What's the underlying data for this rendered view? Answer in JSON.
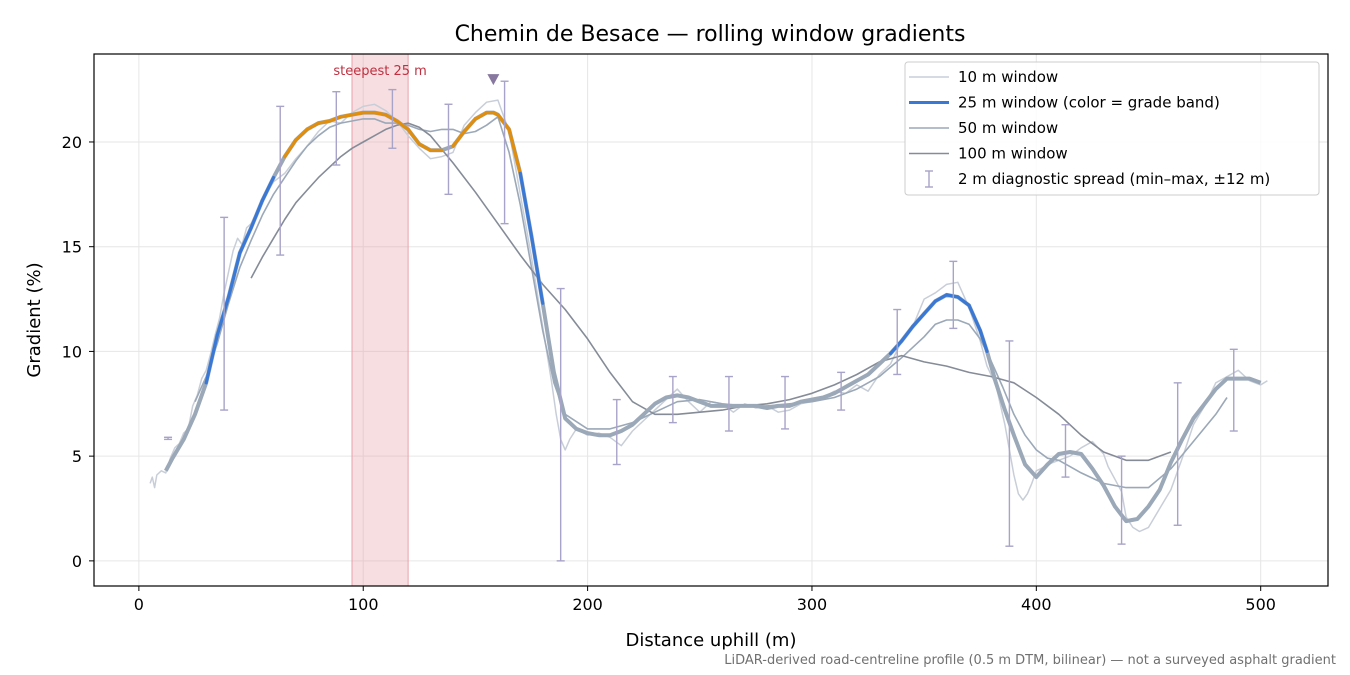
{
  "chart_data": {
    "type": "line",
    "title": "Chemin de Besace — rolling window gradients",
    "xlabel": "Distance uphill (m)",
    "ylabel": "Gradient (%)",
    "xlim": [
      -20,
      530
    ],
    "ylim": [
      -1.2,
      24.2
    ],
    "xticks": [
      0,
      100,
      200,
      300,
      400,
      500
    ],
    "yticks": [
      0,
      5,
      10,
      15,
      20
    ],
    "grid": true,
    "legend_position": "top-right",
    "note": "LiDAR-derived road-centreline profile (0.5 m DTM, bilinear) — not a surveyed asphalt gradient",
    "steepest_band": {
      "x_start": 95,
      "x_end": 120,
      "label": "steepest 25 m",
      "color": "#e8a0a8"
    },
    "peak_marker": {
      "x": 158,
      "y": 23,
      "color": "#8878a0"
    },
    "grade_band_colors": {
      "low": "#3a78d6",
      "high": "#e08e0b",
      "threshold": 19.5
    },
    "series": [
      {
        "name": "10 m window",
        "color": "#c8ced8",
        "width": 1.5,
        "x": [
          5,
          6,
          7,
          8,
          10,
          12,
          14,
          16,
          18,
          20,
          22,
          24,
          26,
          28,
          30,
          32,
          34,
          36,
          38,
          40,
          42,
          44,
          46,
          48,
          50,
          55,
          60,
          65,
          70,
          75,
          80,
          85,
          90,
          95,
          100,
          105,
          110,
          115,
          120,
          125,
          130,
          135,
          140,
          145,
          150,
          155,
          160,
          165,
          170,
          175,
          178,
          181,
          184,
          186,
          188,
          190,
          192,
          195,
          200,
          205,
          210,
          215,
          220,
          225,
          230,
          235,
          240,
          245,
          250,
          255,
          260,
          265,
          270,
          275,
          280,
          285,
          290,
          295,
          300,
          305,
          310,
          315,
          320,
          325,
          330,
          335,
          340,
          345,
          350,
          355,
          360,
          365,
          370,
          375,
          378,
          382,
          386,
          388,
          390,
          392,
          394,
          396,
          398,
          400,
          402,
          405,
          410,
          415,
          420,
          425,
          430,
          432,
          435,
          438,
          440,
          443,
          446,
          450,
          455,
          460,
          465,
          470,
          475,
          480,
          485,
          490,
          495,
          500,
          503
        ],
        "y": [
          3.7,
          4.0,
          3.5,
          4.1,
          4.3,
          4.2,
          4.9,
          5.4,
          5.6,
          6.1,
          6.3,
          7.4,
          7.9,
          8.7,
          9.1,
          9.9,
          10.8,
          11.6,
          12.8,
          13.8,
          14.8,
          15.4,
          15.1,
          15.9,
          16.1,
          17.2,
          18.1,
          18.5,
          19.2,
          19.8,
          20.5,
          21.0,
          20.9,
          21.4,
          21.7,
          21.8,
          21.5,
          21.0,
          20.3,
          19.7,
          19.2,
          19.3,
          19.5,
          20.8,
          21.4,
          21.9,
          22.0,
          20.5,
          17.5,
          14.5,
          12.5,
          10.5,
          8.5,
          7.0,
          5.8,
          5.3,
          5.8,
          6.3,
          6.0,
          6.1,
          5.9,
          5.5,
          6.2,
          6.7,
          7.2,
          7.7,
          8.2,
          7.6,
          7.1,
          7.6,
          7.5,
          7.1,
          7.5,
          7.3,
          7.4,
          7.1,
          7.2,
          7.5,
          7.6,
          7.8,
          8.1,
          8.0,
          8.4,
          8.1,
          8.9,
          9.4,
          10.5,
          11.2,
          12.5,
          12.8,
          13.2,
          13.3,
          12.1,
          10.5,
          9.3,
          8.4,
          6.5,
          5.3,
          4.1,
          3.2,
          2.9,
          3.2,
          3.7,
          4.3,
          4.4,
          4.6,
          4.8,
          5.0,
          5.4,
          5.7,
          5.1,
          4.5,
          3.9,
          3.3,
          2.1,
          1.6,
          1.4,
          1.6,
          2.5,
          3.4,
          4.9,
          6.5,
          7.4,
          8.5,
          8.8,
          9.1,
          8.6,
          8.4,
          8.6
        ]
      },
      {
        "name": "25 m window (color = grade band)",
        "color": "#3a78d6",
        "width": 3,
        "x": [
          12,
          15,
          20,
          25,
          30,
          35,
          40,
          45,
          50,
          55,
          60,
          65,
          70,
          75,
          80,
          85,
          90,
          95,
          100,
          105,
          110,
          115,
          120,
          125,
          130,
          135,
          140,
          145,
          150,
          155,
          158,
          160,
          165,
          170,
          175,
          180,
          185,
          190,
          195,
          200,
          205,
          210,
          215,
          220,
          225,
          230,
          235,
          240,
          245,
          250,
          255,
          260,
          265,
          270,
          275,
          280,
          285,
          290,
          295,
          300,
          305,
          310,
          315,
          320,
          325,
          330,
          335,
          340,
          345,
          350,
          355,
          360,
          365,
          370,
          375,
          378,
          382,
          386,
          390,
          395,
          400,
          405,
          410,
          415,
          420,
          425,
          430,
          435,
          440,
          445,
          450,
          455,
          460,
          465,
          470,
          475,
          480,
          485,
          490,
          495,
          500
        ],
        "y": [
          4.3,
          4.9,
          5.8,
          7.0,
          8.5,
          10.8,
          12.6,
          14.7,
          15.9,
          17.2,
          18.3,
          19.3,
          20.1,
          20.6,
          20.9,
          21.0,
          21.2,
          21.3,
          21.4,
          21.4,
          21.3,
          21.0,
          20.6,
          19.9,
          19.6,
          19.6,
          19.8,
          20.5,
          21.1,
          21.4,
          21.4,
          21.3,
          20.6,
          18.5,
          15.5,
          12.3,
          9.0,
          6.8,
          6.3,
          6.1,
          6.0,
          6.0,
          6.2,
          6.5,
          7.0,
          7.5,
          7.8,
          7.9,
          7.8,
          7.6,
          7.4,
          7.4,
          7.4,
          7.4,
          7.4,
          7.3,
          7.4,
          7.4,
          7.6,
          7.7,
          7.8,
          8.0,
          8.3,
          8.6,
          8.9,
          9.4,
          9.9,
          10.5,
          11.2,
          11.8,
          12.4,
          12.7,
          12.6,
          12.2,
          11.0,
          10.0,
          8.5,
          7.2,
          6.0,
          4.6,
          4.0,
          4.6,
          5.1,
          5.2,
          5.1,
          4.4,
          3.6,
          2.6,
          1.9,
          2.0,
          2.6,
          3.4,
          4.7,
          5.8,
          6.8,
          7.5,
          8.2,
          8.7,
          8.7,
          8.7,
          8.5
        ]
      },
      {
        "name": "50 m window",
        "color": "#9ba8b8",
        "width": 1.6,
        "x": [
          25,
          30,
          35,
          40,
          45,
          50,
          55,
          60,
          65,
          70,
          75,
          80,
          85,
          90,
          95,
          100,
          105,
          110,
          115,
          120,
          125,
          130,
          135,
          140,
          145,
          150,
          155,
          160,
          165,
          170,
          175,
          180,
          185,
          190,
          200,
          210,
          220,
          230,
          240,
          250,
          260,
          270,
          280,
          290,
          300,
          310,
          320,
          330,
          340,
          350,
          355,
          360,
          365,
          370,
          375,
          380,
          385,
          390,
          395,
          400,
          405,
          410,
          415,
          420,
          430,
          440,
          450,
          460,
          470,
          480,
          485
        ],
        "y": [
          7.6,
          8.8,
          10.4,
          12.3,
          14.0,
          15.3,
          16.5,
          17.5,
          18.3,
          19.1,
          19.8,
          20.3,
          20.7,
          20.9,
          21.0,
          21.1,
          21.1,
          20.9,
          20.9,
          20.8,
          20.6,
          20.5,
          20.6,
          20.6,
          20.4,
          20.5,
          20.8,
          21.2,
          19.5,
          17.0,
          14.0,
          11.0,
          8.5,
          7.0,
          6.3,
          6.3,
          6.6,
          7.1,
          7.6,
          7.7,
          7.5,
          7.4,
          7.4,
          7.5,
          7.6,
          7.8,
          8.2,
          8.8,
          9.7,
          10.7,
          11.3,
          11.5,
          11.5,
          11.3,
          10.6,
          9.5,
          8.3,
          7.0,
          6.0,
          5.3,
          4.9,
          4.8,
          4.5,
          4.2,
          3.7,
          3.5,
          3.5,
          4.4,
          5.7,
          7.0,
          7.8
        ]
      },
      {
        "name": "100 m window",
        "color": "#858c98",
        "width": 1.6,
        "x": [
          50,
          55,
          60,
          65,
          70,
          75,
          80,
          85,
          90,
          95,
          100,
          105,
          110,
          115,
          120,
          125,
          130,
          140,
          150,
          160,
          170,
          180,
          190,
          200,
          210,
          220,
          230,
          240,
          250,
          260,
          270,
          280,
          290,
          300,
          310,
          320,
          330,
          340,
          350,
          360,
          370,
          380,
          390,
          400,
          410,
          420,
          430,
          440,
          450,
          460
        ],
        "y": [
          13.5,
          14.5,
          15.4,
          16.3,
          17.1,
          17.7,
          18.3,
          18.8,
          19.3,
          19.7,
          20.0,
          20.3,
          20.6,
          20.8,
          20.9,
          20.7,
          20.3,
          19.0,
          17.6,
          16.1,
          14.6,
          13.2,
          12.0,
          10.6,
          9.0,
          7.6,
          7.0,
          7.0,
          7.1,
          7.2,
          7.4,
          7.5,
          7.7,
          8.0,
          8.4,
          8.9,
          9.5,
          9.8,
          9.5,
          9.3,
          9.0,
          8.8,
          8.5,
          7.8,
          7.0,
          6.0,
          5.2,
          4.8,
          4.8,
          5.2
        ]
      }
    ],
    "error_bars": {
      "name": "2 m diagnostic spread (min–max, ±12 m)",
      "color": "#a8a3c8",
      "points": [
        {
          "x": 13,
          "low": 5.8,
          "high": 5.9
        },
        {
          "x": 38,
          "low": 7.2,
          "high": 16.4
        },
        {
          "x": 63,
          "low": 14.6,
          "high": 21.7
        },
        {
          "x": 88,
          "low": 18.9,
          "high": 22.4
        },
        {
          "x": 113,
          "low": 19.7,
          "high": 22.5
        },
        {
          "x": 138,
          "low": 17.5,
          "high": 21.8
        },
        {
          "x": 163,
          "low": 16.1,
          "high": 22.9
        },
        {
          "x": 188,
          "low": 0.0,
          "high": 13.0
        },
        {
          "x": 213,
          "low": 4.6,
          "high": 7.7
        },
        {
          "x": 238,
          "low": 6.6,
          "high": 8.8
        },
        {
          "x": 263,
          "low": 6.2,
          "high": 8.8
        },
        {
          "x": 288,
          "low": 6.3,
          "high": 8.8
        },
        {
          "x": 313,
          "low": 7.2,
          "high": 9.0
        },
        {
          "x": 338,
          "low": 8.9,
          "high": 12.0
        },
        {
          "x": 363,
          "low": 11.1,
          "high": 14.3
        },
        {
          "x": 388,
          "low": 0.7,
          "high": 10.5
        },
        {
          "x": 413,
          "low": 4.0,
          "high": 6.5
        },
        {
          "x": 438,
          "low": 0.8,
          "high": 5.0
        },
        {
          "x": 463,
          "low": 1.7,
          "high": 8.5
        },
        {
          "x": 488,
          "low": 6.2,
          "high": 10.1
        }
      ]
    }
  }
}
